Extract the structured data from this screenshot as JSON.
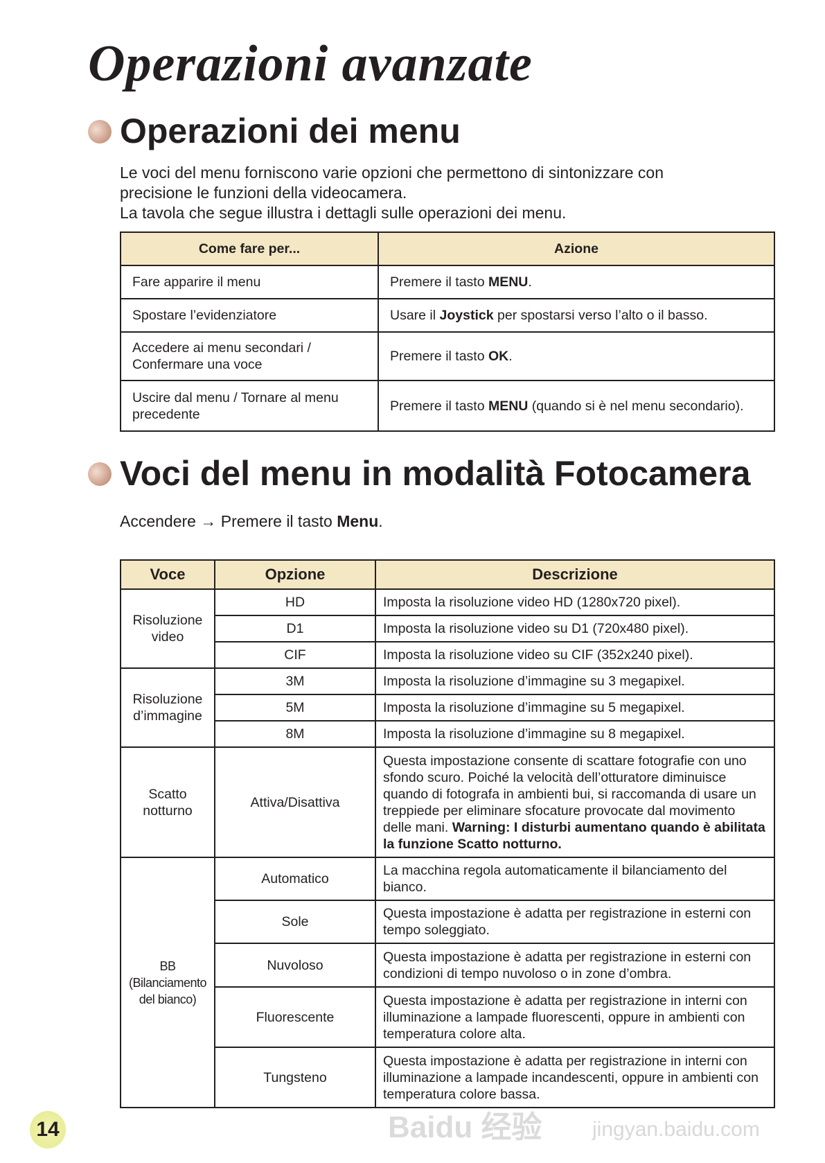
{
  "title": "Operazioni avanzate",
  "section1": {
    "heading": "Operazioni dei menu",
    "paragraph": [
      "Le voci del menu forniscono varie opzioni che permettono di sintonizzare con",
      "precisione le funzioni della videocamera.",
      "La tavola che segue illustra i dettagli sulle operazioni dei menu."
    ],
    "table": {
      "headers": [
        "Come fare per...",
        "Azione"
      ],
      "rows": [
        {
          "how": [
            "Fare apparire il menu"
          ],
          "action": [
            {
              "t": "Premere il tasto "
            },
            {
              "t": "MENU",
              "b": true
            },
            {
              "t": "."
            }
          ]
        },
        {
          "how": [
            "Spostare l’evidenziatore"
          ],
          "action": [
            {
              "t": "Usare il "
            },
            {
              "t": "Joystick",
              "b": true
            },
            {
              "t": " per spostarsi verso l’alto o il basso."
            }
          ]
        },
        {
          "how": [
            "Accedere ai menu secondari /",
            "Confermare una voce"
          ],
          "action": [
            {
              "t": "Premere il tasto "
            },
            {
              "t": "OK",
              "b": true
            },
            {
              "t": "."
            }
          ]
        },
        {
          "how": [
            "Uscire dal menu / Tornare al menu",
            "precedente"
          ],
          "action": [
            {
              "t": "Premere il tasto "
            },
            {
              "t": "MENU",
              "b": true
            },
            {
              "t": " (quando si è nel menu secondario)."
            }
          ]
        }
      ]
    }
  },
  "section2": {
    "heading": "Voci del menu in modalità Fotocamera",
    "instruction": [
      {
        "t": "Accendere → Premere il tasto "
      },
      {
        "t": "Menu",
        "b": true
      },
      {
        "t": "."
      }
    ],
    "table": {
      "headers": [
        "Voce",
        "Opzione",
        "Descrizione"
      ],
      "groups": [
        {
          "voce": [
            "Risoluzione",
            "video"
          ],
          "rows": [
            {
              "option": "HD",
              "desc": [
                {
                  "t": "Imposta la risoluzione video HD (1280x720 pixel)."
                }
              ]
            },
            {
              "option": "D1",
              "desc": [
                {
                  "t": "Imposta la risoluzione video su D1 (720x480 pixel)."
                }
              ]
            },
            {
              "option": "CIF",
              "desc": [
                {
                  "t": "Imposta la risoluzione video su CIF (352x240 pixel)."
                }
              ]
            }
          ]
        },
        {
          "voce": [
            "Risoluzione",
            "d’immagine"
          ],
          "rows": [
            {
              "option": "3M",
              "desc": [
                {
                  "t": "Imposta la risoluzione d’immagine su 3 megapixel."
                }
              ]
            },
            {
              "option": "5M",
              "desc": [
                {
                  "t": "Imposta la risoluzione d’immagine su 5 megapixel."
                }
              ]
            },
            {
              "option": "8M",
              "desc": [
                {
                  "t": "Imposta la risoluzione d’immagine su 8 megapixel."
                }
              ]
            }
          ]
        },
        {
          "voce": [
            "Scatto",
            "notturno"
          ],
          "rows": [
            {
              "option": "Attiva/Disattiva",
              "desc": [
                {
                  "t": "Questa impostazione consente di scattare fotografie con uno sfondo scuro. Poiché la velocità dell’otturatore diminuisce quando di fotografa in ambienti bui, si raccomanda di usare un treppiede per eliminare sfocature provocate dal movimento delle mani. "
                },
                {
                  "t": "Warning: I disturbi aumentano quando è abilitata la funzione Scatto notturno.",
                  "b": true
                }
              ]
            }
          ]
        },
        {
          "voce": [
            "BB",
            "(Bilanciamento",
            "del bianco)"
          ],
          "rows": [
            {
              "option": "Automatico",
              "desc": [
                {
                  "t": "La macchina regola automaticamente il bilanciamento del bianco."
                }
              ]
            },
            {
              "option": "Sole",
              "desc": [
                {
                  "t": "Questa impostazione è adatta per registrazione in esterni con tempo soleggiato."
                }
              ]
            },
            {
              "option": "Nuvoloso",
              "desc": [
                {
                  "t": "Questa impostazione è adatta per registrazione in esterni con condizioni di tempo nuvoloso o in zone d’ombra."
                }
              ]
            },
            {
              "option": "Fluorescente",
              "desc": [
                {
                  "t": "Questa impostazione è adatta per registrazione in interni con illuminazione a lampade fluorescenti, oppure in ambienti con temperatura colore alta."
                }
              ]
            },
            {
              "option": "Tungsteno",
              "desc": [
                {
                  "t": "Questa impostazione è adatta per registrazione in interni con illuminazione a lampade incandescenti, oppure in ambienti con temperatura colore bassa."
                }
              ]
            }
          ]
        }
      ]
    }
  },
  "page_number": "14",
  "watermark": {
    "logo": "Baidu 经验",
    "url": "jingyan.baidu.com"
  },
  "colors": {
    "header_bg": "#f4e8c4",
    "page_badge": "#e6ea8c",
    "bullet": "#c99a85"
  }
}
